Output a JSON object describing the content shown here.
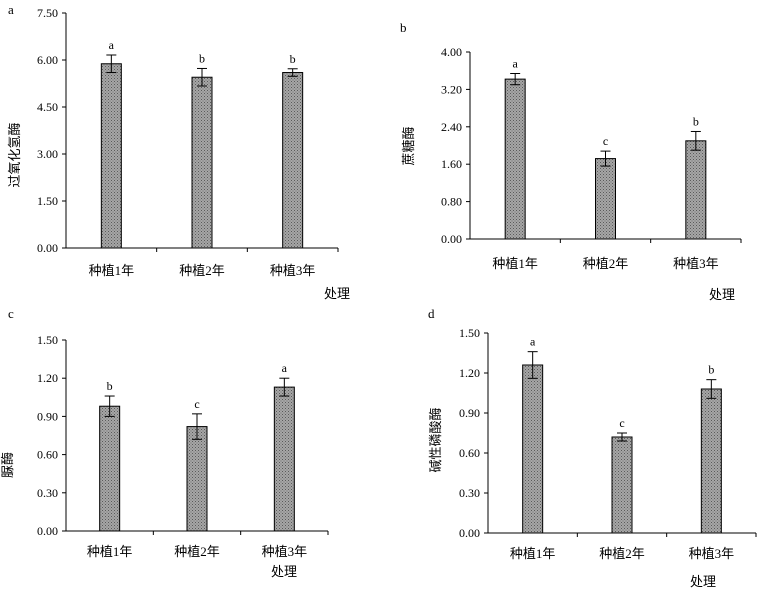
{
  "fill_color": "#9a9a9a",
  "chart_data": [
    {
      "type": "bar",
      "panel": "a",
      "ylabel": "过氧化氢酶",
      "xlabel": "处理",
      "categories": [
        "种植1年",
        "种植2年",
        "种植3年"
      ],
      "values": [
        5.88,
        5.45,
        5.6
      ],
      "errors": [
        0.28,
        0.28,
        0.12
      ],
      "significance": [
        "a",
        "b",
        "b"
      ],
      "ylim": [
        0,
        7.5
      ],
      "yticks": [
        "0.00",
        "1.50",
        "3.00",
        "4.50",
        "6.00",
        "7.50"
      ]
    },
    {
      "type": "bar",
      "panel": "b",
      "ylabel": "蔗糖酶",
      "xlabel": "处理",
      "categories": [
        "种植1年",
        "种植2年",
        "种植3年"
      ],
      "values": [
        3.42,
        1.72,
        2.1
      ],
      "errors": [
        0.12,
        0.16,
        0.2
      ],
      "significance": [
        "a",
        "c",
        "b"
      ],
      "ylim": [
        0,
        4.0
      ],
      "yticks": [
        "0.00",
        "0.80",
        "1.60",
        "2.40",
        "3.20",
        "4.00"
      ]
    },
    {
      "type": "bar",
      "panel": "c",
      "ylabel": "脲酶",
      "xlabel": "处理",
      "categories": [
        "种植1年",
        "种植2年",
        "种植3年"
      ],
      "values": [
        0.98,
        0.82,
        1.13
      ],
      "errors": [
        0.08,
        0.1,
        0.07
      ],
      "significance": [
        "b",
        "c",
        "a"
      ],
      "ylim": [
        0,
        1.5
      ],
      "yticks": [
        "0.00",
        "0.30",
        "0.60",
        "0.90",
        "1.20",
        "1.50"
      ]
    },
    {
      "type": "bar",
      "panel": "d",
      "ylabel": "碱性磷酸酶",
      "xlabel": "处理",
      "categories": [
        "种植1年",
        "种植2年",
        "种植3年"
      ],
      "values": [
        1.26,
        0.72,
        1.08
      ],
      "errors": [
        0.1,
        0.03,
        0.07
      ],
      "significance": [
        "a",
        "c",
        "b"
      ],
      "ylim": [
        0,
        1.5
      ],
      "yticks": [
        "0.00",
        "0.30",
        "0.60",
        "0.90",
        "1.20",
        "1.50"
      ]
    }
  ]
}
